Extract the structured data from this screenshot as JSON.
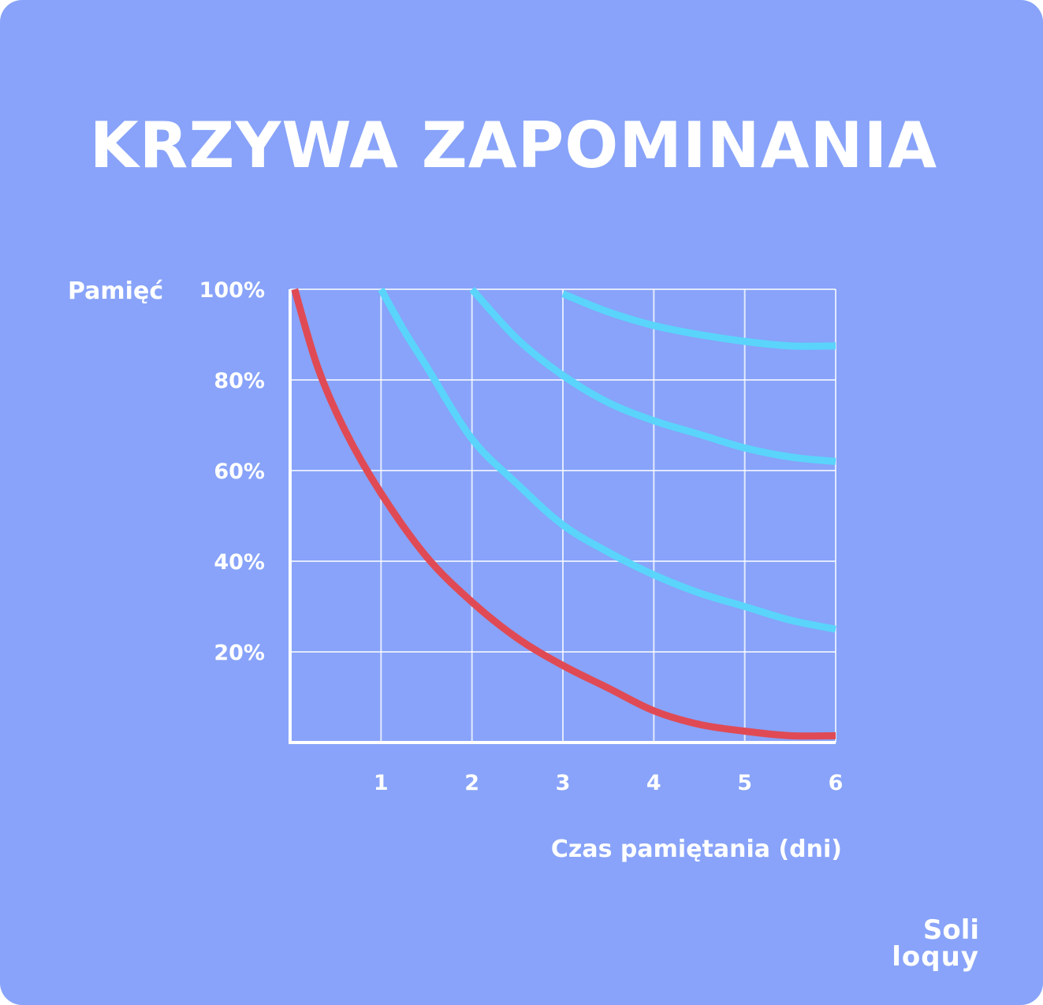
{
  "title": "KRZYWA ZAPOMINANIA",
  "colors": {
    "background": "#88a3f9",
    "text": "#ffffff",
    "grid": "#ffffff",
    "forgetting_curve": "#e04a55",
    "review_curves": "#5ad4fb"
  },
  "logo": {
    "line1": "Soli",
    "line2": "loquy"
  },
  "chart_data": {
    "type": "line",
    "title": "KRZYWA ZAPOMINANIA",
    "xlabel": "Czas pamiętania (dni)",
    "ylabel": "Pamięć",
    "xlim": [
      0,
      6
    ],
    "ylim": [
      0,
      100
    ],
    "x_ticks": [
      {
        "value": 1,
        "label": "1"
      },
      {
        "value": 2,
        "label": "2"
      },
      {
        "value": 3,
        "label": "3"
      },
      {
        "value": 4,
        "label": "4"
      },
      {
        "value": 5,
        "label": "5"
      },
      {
        "value": 6,
        "label": "6"
      }
    ],
    "y_ticks": [
      {
        "value": 20,
        "label": "20%"
      },
      {
        "value": 40,
        "label": "40%"
      },
      {
        "value": 60,
        "label": "60%"
      },
      {
        "value": 80,
        "label": "80%"
      },
      {
        "value": 100,
        "label": "100%"
      }
    ],
    "grid": true,
    "series": [
      {
        "color": "#e04a55",
        "x": [
          0.05,
          0.3,
          0.6,
          1.0,
          1.5,
          2.0,
          2.5,
          3.0,
          3.5,
          4.0,
          4.5,
          5.0,
          5.5,
          6.0
        ],
        "y": [
          100,
          83,
          69,
          55,
          41,
          31,
          23,
          17,
          12,
          7,
          4,
          2.5,
          1.5,
          1.5
        ]
      },
      {
        "color": "#5ad4fb",
        "x": [
          1.0,
          1.25,
          1.5,
          2.0,
          2.5,
          3.0,
          3.5,
          4.0,
          4.5,
          5.0,
          5.5,
          6.0
        ],
        "y": [
          100,
          91,
          83,
          67,
          57,
          48,
          42,
          37,
          33,
          30,
          27,
          25
        ]
      },
      {
        "color": "#5ad4fb",
        "x": [
          2.0,
          2.5,
          3.0,
          3.5,
          4.0,
          4.5,
          5.0,
          5.5,
          6.0
        ],
        "y": [
          100,
          89,
          81,
          75,
          71,
          68,
          65,
          63,
          62
        ]
      },
      {
        "color": "#5ad4fb",
        "x": [
          3.0,
          3.5,
          4.0,
          4.5,
          5.0,
          5.5,
          6.0
        ],
        "y": [
          99,
          95,
          92,
          90,
          88.5,
          87.5,
          87.5
        ]
      }
    ]
  }
}
